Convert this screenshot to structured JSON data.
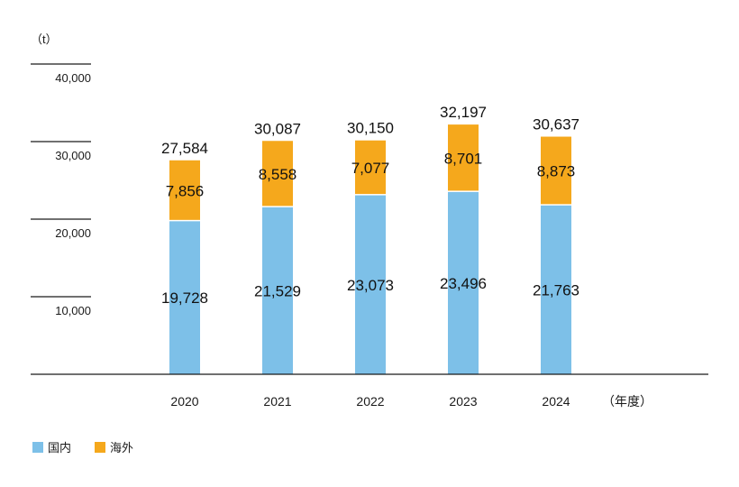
{
  "chart_data": {
    "type": "bar",
    "stacked": true,
    "y_unit": "（t）",
    "x_unit": "（年度）",
    "categories": [
      "2020",
      "2021",
      "2022",
      "2023",
      "2024"
    ],
    "series": [
      {
        "name": "国内",
        "color": "#7dc0e8",
        "values": [
          19728,
          21529,
          23073,
          23496,
          21763
        ],
        "labels": [
          "19,728",
          "21,529",
          "23,073",
          "23,496",
          "21,763"
        ]
      },
      {
        "name": "海外",
        "color": "#f5a81c",
        "values": [
          7856,
          8558,
          7077,
          8701,
          8873
        ],
        "labels": [
          "7,856",
          "8,558",
          "7,077",
          "8,701",
          "8,873"
        ]
      }
    ],
    "totals": [
      27584,
      30087,
      30150,
      32197,
      30637
    ],
    "total_labels": [
      "27,584",
      "30,087",
      "30,150",
      "32,197",
      "30,637"
    ],
    "ylim": [
      0,
      40000
    ],
    "yticks": [
      10000,
      20000,
      30000,
      40000
    ],
    "ytick_labels": [
      "10,000",
      "20,000",
      "30,000",
      "40,000"
    ],
    "grid": false,
    "legend_position": "bottom-left"
  }
}
